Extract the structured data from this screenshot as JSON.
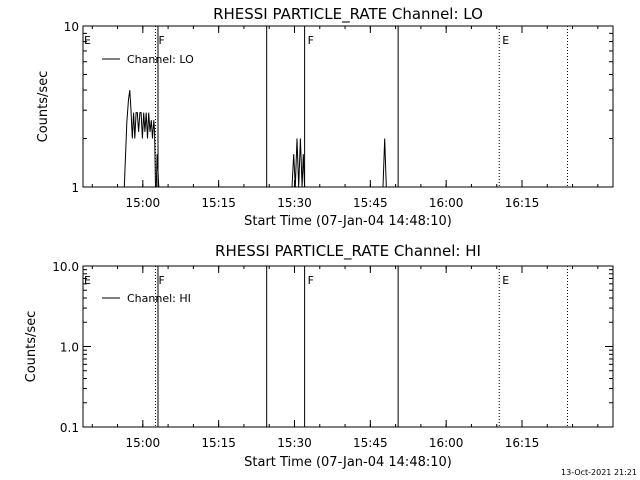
{
  "footer_timestamp": "13-Oct-2021 21:21",
  "chart_data": [
    {
      "type": "line",
      "title": "RHESSI PARTICLE_RATE Channel: LO",
      "xlabel": "Start Time (07-Jan-04 14:48:10)",
      "ylabel": "Counts/sec",
      "xlim": [
        "14:48:10",
        "16:33:00"
      ],
      "ylim": [
        1,
        10
      ],
      "yscale": "log",
      "x_ticks": [
        "15:00",
        "15:15",
        "15:30",
        "15:45",
        "16:00",
        "16:15"
      ],
      "y_ticks": [
        {
          "value": 1,
          "label": "1"
        },
        {
          "value": 10,
          "label": "10"
        }
      ],
      "legend": {
        "entries": [
          "Channel: LO"
        ],
        "placement": "top-left"
      },
      "event_lines": [
        {
          "time": "15:02:30",
          "style": "dotted",
          "label": "F"
        },
        {
          "time": "15:03:00",
          "style": "solid",
          "label": ""
        },
        {
          "time": "15:24:30",
          "style": "solid",
          "label": ""
        },
        {
          "time": "15:32:00",
          "style": "solid",
          "label": "F"
        },
        {
          "time": "15:50:30",
          "style": "solid",
          "label": ""
        },
        {
          "time": "16:10:30",
          "style": "dotted",
          "label": "E"
        },
        {
          "time": "16:24:00",
          "style": "dotted",
          "label": ""
        }
      ],
      "edge_labels": [
        {
          "time": "14:48:10",
          "label": "E"
        }
      ],
      "series": [
        {
          "name": "Channel: LO",
          "points": [
            [
              "14:56:20",
              1.0
            ],
            [
              "14:56:50",
              2.5
            ],
            [
              "14:57:10",
              3.5
            ],
            [
              "14:57:25",
              4.0
            ],
            [
              "14:57:40",
              3.0
            ],
            [
              "14:57:55",
              2.0
            ],
            [
              "14:58:10",
              2.9
            ],
            [
              "14:58:25",
              2.0
            ],
            [
              "14:58:40",
              2.9
            ],
            [
              "14:58:55",
              2.9
            ],
            [
              "14:59:10",
              2.2
            ],
            [
              "14:59:25",
              2.9
            ],
            [
              "14:59:40",
              2.9
            ],
            [
              "14:59:55",
              2.0
            ],
            [
              "15:00:10",
              2.9
            ],
            [
              "15:00:25",
              2.2
            ],
            [
              "15:00:40",
              2.9
            ],
            [
              "15:00:55",
              2.0
            ],
            [
              "15:01:10",
              2.9
            ],
            [
              "15:01:25",
              2.2
            ],
            [
              "15:01:40",
              2.6
            ],
            [
              "15:01:55",
              2.0
            ],
            [
              "15:02:10",
              2.6
            ],
            [
              "15:02:20",
              2.2
            ],
            [
              "15:02:30",
              1.0
            ],
            [
              "15:02:40",
              1.0
            ],
            [
              "15:02:50",
              1.6
            ],
            [
              "15:03:10",
              1.0
            ],
            [
              "15:29:30",
              1.0
            ],
            [
              "15:29:50",
              1.6
            ],
            [
              "15:30:10",
              1.0
            ],
            [
              "15:30:30",
              2.0
            ],
            [
              "15:30:50",
              1.0
            ],
            [
              "15:31:10",
              2.0
            ],
            [
              "15:31:30",
              1.0
            ],
            [
              "15:31:45",
              1.6
            ],
            [
              "15:32:00",
              1.0
            ],
            [
              "15:47:30",
              1.0
            ],
            [
              "15:47:50",
              2.0
            ],
            [
              "15:48:10",
              1.0
            ]
          ]
        }
      ]
    },
    {
      "type": "line",
      "title": "RHESSI PARTICLE_RATE Channel: HI",
      "xlabel": "Start Time (07-Jan-04 14:48:10)",
      "ylabel": "Counts/sec",
      "xlim": [
        "14:48:10",
        "16:33:00"
      ],
      "ylim": [
        0.1,
        10
      ],
      "yscale": "log",
      "x_ticks": [
        "15:00",
        "15:15",
        "15:30",
        "15:45",
        "16:00",
        "16:15"
      ],
      "y_ticks": [
        {
          "value": 0.1,
          "label": "0.1"
        },
        {
          "value": 1,
          "label": "1.0"
        },
        {
          "value": 10,
          "label": "10.0"
        }
      ],
      "legend": {
        "entries": [
          "Channel: HI"
        ],
        "placement": "top-left"
      },
      "event_lines": [
        {
          "time": "15:02:30",
          "style": "dotted",
          "label": "F"
        },
        {
          "time": "15:03:00",
          "style": "solid",
          "label": ""
        },
        {
          "time": "15:24:30",
          "style": "solid",
          "label": ""
        },
        {
          "time": "15:32:00",
          "style": "solid",
          "label": "F"
        },
        {
          "time": "15:50:30",
          "style": "solid",
          "label": ""
        },
        {
          "time": "16:10:30",
          "style": "dotted",
          "label": "E"
        },
        {
          "time": "16:24:00",
          "style": "dotted",
          "label": ""
        }
      ],
      "edge_labels": [
        {
          "time": "14:48:10",
          "label": "E"
        }
      ],
      "series": [
        {
          "name": "Channel: HI",
          "points": []
        }
      ]
    }
  ]
}
